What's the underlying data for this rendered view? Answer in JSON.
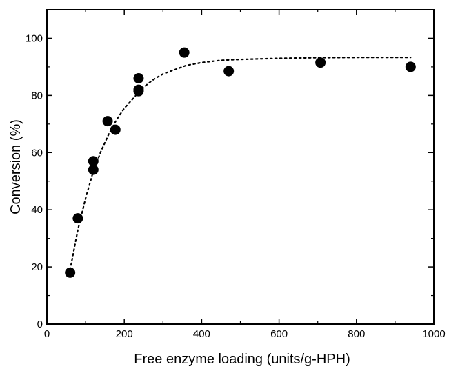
{
  "chart_data": {
    "type": "scatter",
    "title": "",
    "xlabel": "Free enzyme loading (units/g-HPH)",
    "ylabel": "Conversion (%)",
    "xlim": [
      0,
      1000
    ],
    "ylim": [
      0,
      110
    ],
    "xticks": [
      0,
      200,
      400,
      600,
      800,
      1000
    ],
    "yticks": [
      0,
      20,
      40,
      60,
      80,
      100
    ],
    "grid": false,
    "legend": "none",
    "series": [
      {
        "kind": "points",
        "marker": "filled-circle",
        "color": "#000000",
        "x": [
          60,
          80,
          120,
          120,
          157,
          177,
          237,
          237,
          237,
          355,
          470,
          707,
          940
        ],
        "y": [
          18,
          37,
          57,
          54,
          71,
          68,
          86,
          82,
          81.5,
          95,
          88.5,
          91.5,
          90
        ]
      },
      {
        "kind": "fit",
        "line_style": "dotted",
        "color": "#000000",
        "x": [
          60,
          80,
          100,
          120,
          140,
          160,
          180,
          200,
          220,
          240,
          260,
          280,
          300,
          320,
          340,
          360,
          400,
          450,
          500,
          550,
          600,
          700,
          800,
          940
        ],
        "y": [
          19,
          33,
          44,
          53.5,
          60.5,
          66.5,
          71.5,
          75.5,
          78.5,
          81.5,
          84,
          86,
          87.5,
          88.5,
          89.5,
          90.5,
          91.5,
          92.3,
          92.6,
          92.8,
          93,
          93.2,
          93.3,
          93.3
        ]
      }
    ]
  }
}
